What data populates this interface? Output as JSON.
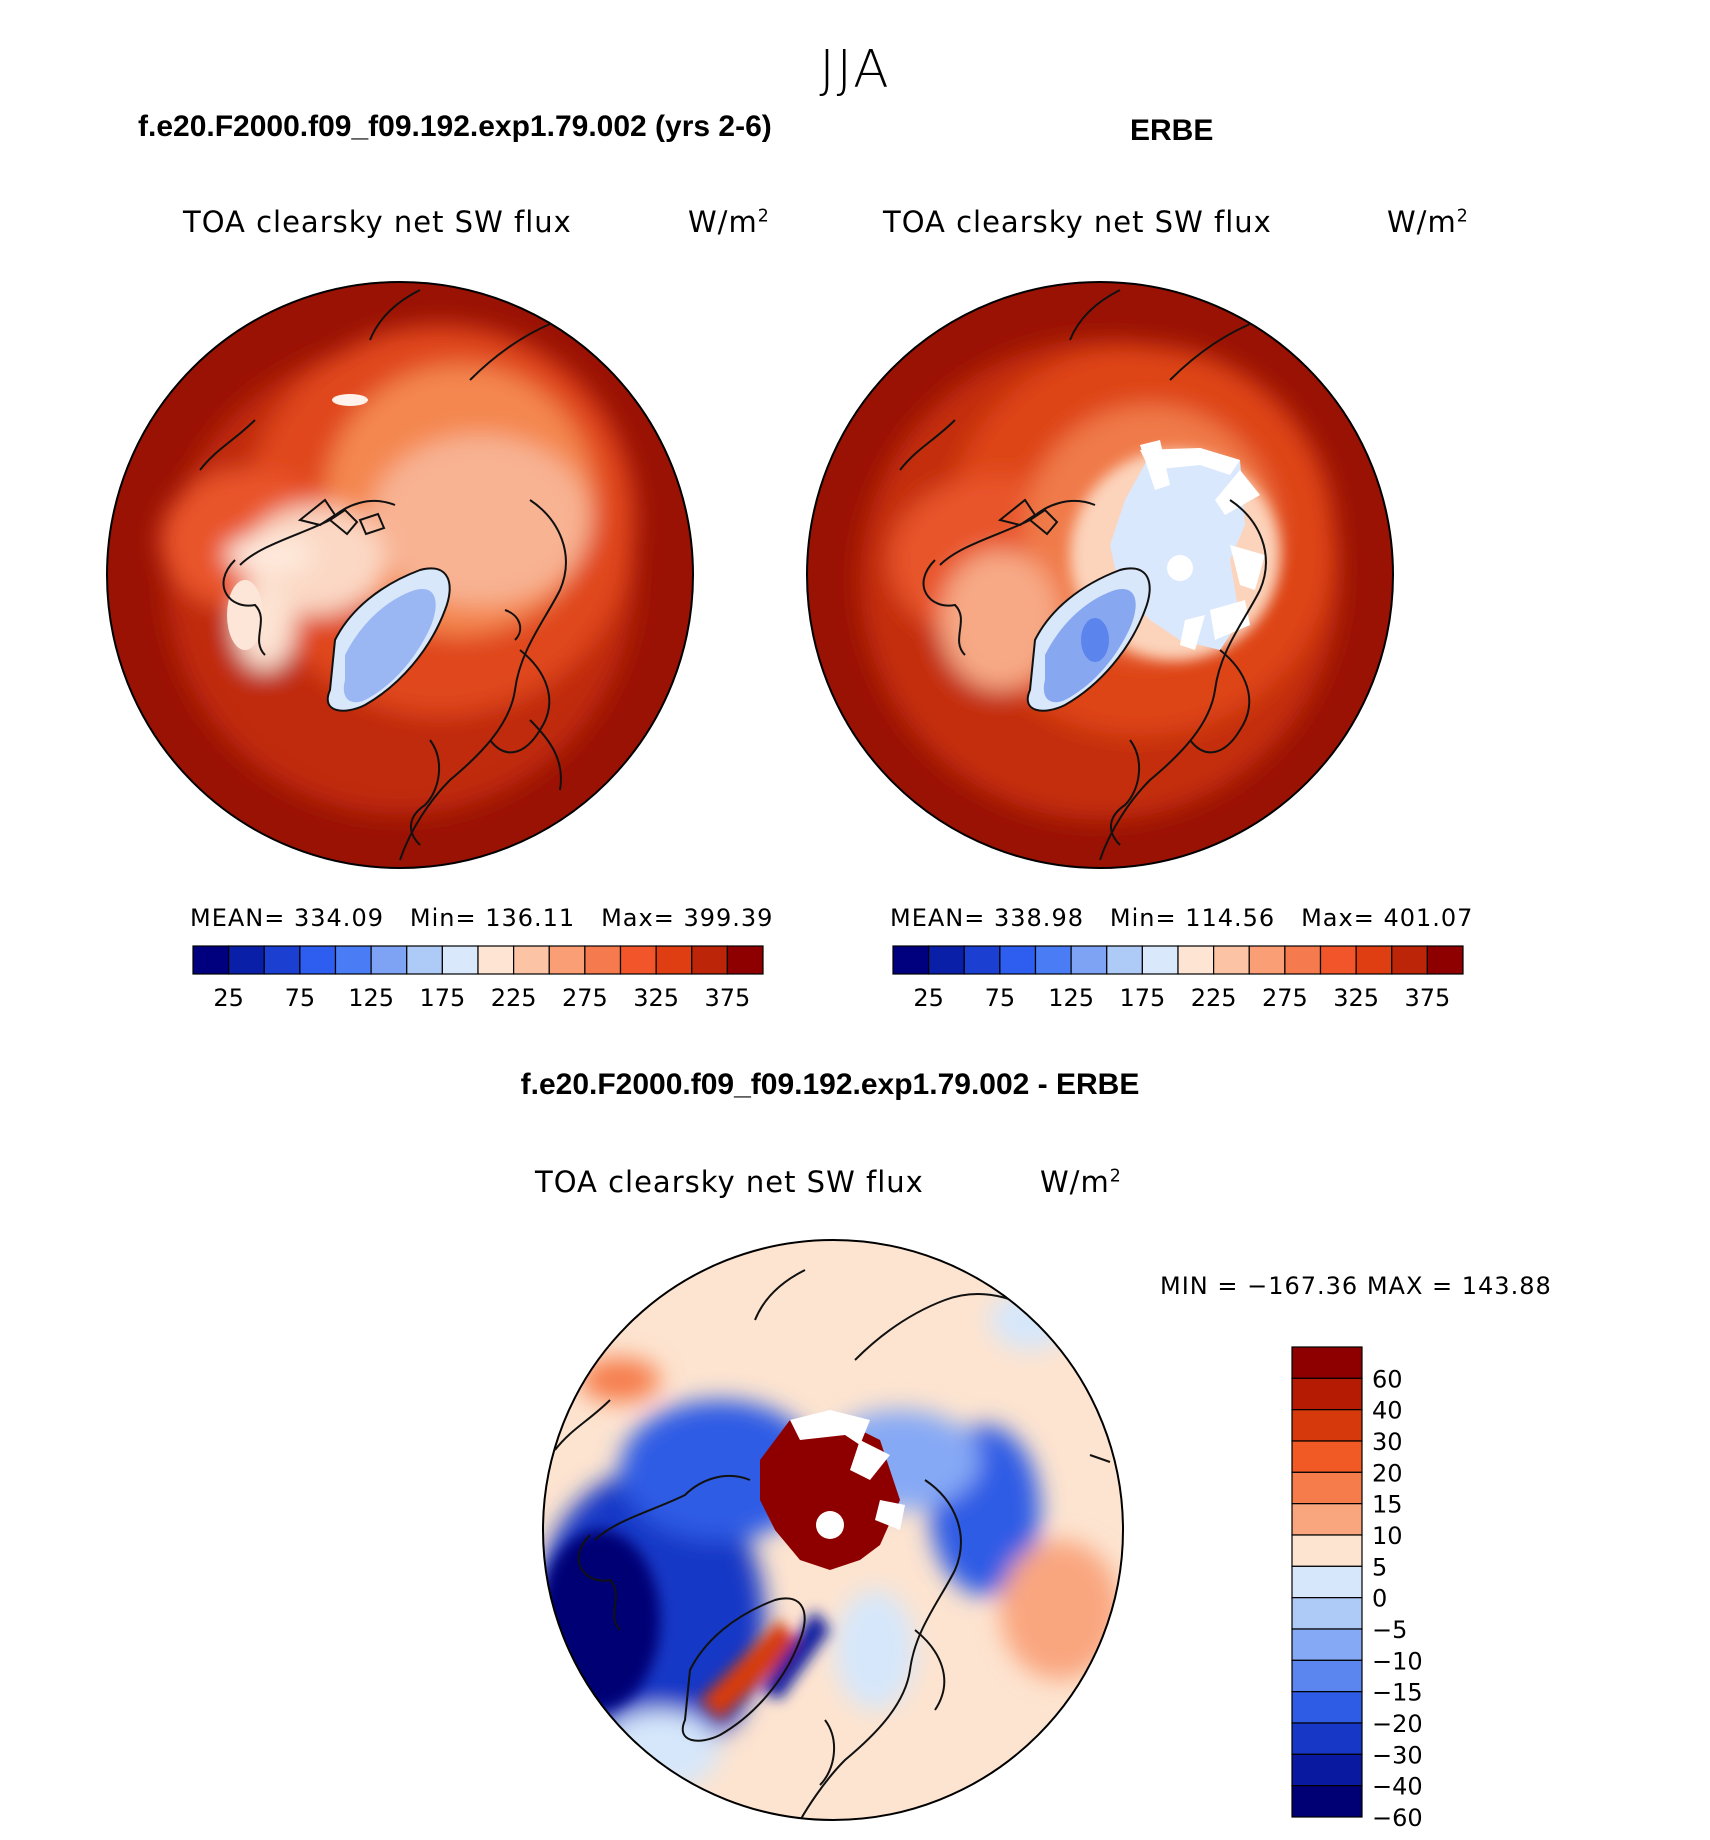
{
  "season": "JJA",
  "panels": [
    {
      "case_title": "f.e20.F2000.f09_f09.192.exp1.79.002 (yrs 2-6)",
      "var_title": "TOA clearsky net SW flux",
      "units_base": "W/m",
      "units_sup": "2",
      "stats": {
        "mean_label": "MEAN=",
        "mean": "334.09",
        "min_label": "Min=",
        "min": "136.11",
        "max_label": "Max=",
        "max": "399.39"
      }
    },
    {
      "case_title": "ERBE",
      "var_title": "TOA clearsky net SW flux",
      "units_base": "W/m",
      "units_sup": "2",
      "stats": {
        "mean_label": "MEAN=",
        "mean": "338.98",
        "min_label": "Min=",
        "min": "114.56",
        "max_label": "Max=",
        "max": "401.07"
      }
    }
  ],
  "abs_colorbar": {
    "colors": [
      "#00007f",
      "#0a1fa8",
      "#1b3fd0",
      "#2d5ef0",
      "#4a7df5",
      "#7ea3f5",
      "#aecaf7",
      "#d9e8fb",
      "#fde4d3",
      "#fcc3a4",
      "#fa9e76",
      "#f57a4e",
      "#f2552a",
      "#df3d12",
      "#bd2508",
      "#8e0000"
    ],
    "labels": [
      "25",
      "75",
      "125",
      "175",
      "225",
      "275",
      "325",
      "375"
    ]
  },
  "diff": {
    "case_title": "f.e20.F2000.f09_f09.192.exp1.79.002 - ERBE",
    "var_title": "TOA clearsky net SW flux",
    "units_base": "W/m",
    "units_sup": "2",
    "minmax": "MIN = −167.36 MAX = 143.88",
    "colorbar": {
      "colors": [
        "#8e0000",
        "#b51a02",
        "#d63a0c",
        "#f25a25",
        "#f67d4b",
        "#f9a67f",
        "#fde4d0",
        "#d6e7fb",
        "#aecbf7",
        "#86a9f5",
        "#5b86ef",
        "#2f5ce5",
        "#1737c6",
        "#0a1aa0",
        "#000074"
      ],
      "labels": [
        "60",
        "40",
        "30",
        "20",
        "15",
        "10",
        "5",
        "0",
        "−5",
        "−10",
        "−15",
        "−20",
        "−30",
        "−40",
        "−60"
      ]
    }
  }
}
